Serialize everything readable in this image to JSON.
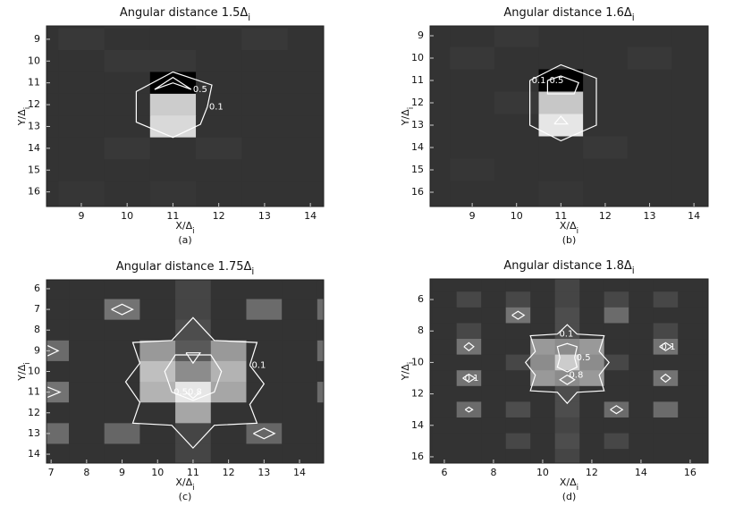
{
  "chart_data": [
    {
      "type": "heatmap",
      "title": "Angular distance 1.5Δ",
      "title_subscript": "i",
      "xlabel": "X/Δ",
      "xlabel_subscript": "i",
      "ylabel": "Y/Δ",
      "ylabel_subscript": "i",
      "caption": "(a)",
      "xlim": [
        8.24,
        14.29
      ],
      "ylim": [
        8.39,
        16.67
      ],
      "y_reversed": true,
      "xticks": [
        9,
        10,
        11,
        12,
        13,
        14
      ],
      "yticks": [
        9,
        10,
        11,
        12,
        13,
        14,
        15,
        16
      ],
      "clim": [
        0,
        1
      ],
      "xcells": [
        8,
        9,
        10,
        11,
        12,
        13,
        14
      ],
      "ycells": [
        8,
        9,
        10,
        11,
        12,
        13,
        14,
        15,
        16,
        17
      ],
      "z": [
        [
          0.2,
          0.2,
          0.21,
          0.2,
          0.21,
          0.2,
          0.2
        ],
        [
          0.2,
          0.22,
          0.2,
          0.2,
          0.2,
          0.22,
          0.2
        ],
        [
          0.2,
          0.2,
          0.22,
          0.22,
          0.2,
          0.2,
          0.2
        ],
        [
          0.2,
          0.2,
          0.2,
          0.0,
          0.2,
          0.2,
          0.2
        ],
        [
          0.2,
          0.2,
          0.2,
          0.8,
          0.2,
          0.2,
          0.2
        ],
        [
          0.2,
          0.2,
          0.2,
          0.85,
          0.2,
          0.2,
          0.2
        ],
        [
          0.2,
          0.2,
          0.22,
          0.2,
          0.22,
          0.2,
          0.2
        ],
        [
          0.2,
          0.2,
          0.2,
          0.2,
          0.2,
          0.2,
          0.2
        ],
        [
          0.2,
          0.21,
          0.2,
          0.21,
          0.2,
          0.2,
          0.2
        ],
        [
          0.2,
          0.21,
          0.2,
          0.21,
          0.2,
          0.2,
          0.2
        ]
      ],
      "contours": [
        {
          "level": 0.1,
          "x": [
            11.75,
            11.6,
            11.0,
            10.2,
            10.2,
            11.0,
            11.85,
            11.75
          ],
          "y": [
            12.1,
            12.9,
            13.5,
            12.8,
            11.4,
            10.5,
            11.1,
            12.1
          ]
        },
        {
          "level": 0.5,
          "x": [
            11.4,
            11.0,
            10.6,
            11.0,
            11.4
          ],
          "y": [
            11.3,
            10.75,
            11.3,
            11.0,
            11.3
          ]
        }
      ]
    },
    {
      "type": "heatmap",
      "title": "Angular distance 1.6Δ",
      "title_subscript": "i",
      "xlabel": "X/Δ",
      "xlabel_subscript": "i",
      "ylabel": "Y/Δ",
      "ylabel_subscript": "i",
      "caption": "(b)",
      "xlim": [
        8.05,
        14.32
      ],
      "ylim": [
        8.56,
        16.64
      ],
      "y_reversed": true,
      "xticks": [
        9,
        10,
        11,
        12,
        13,
        14
      ],
      "yticks": [
        9,
        10,
        11,
        12,
        13,
        14,
        15,
        16
      ],
      "clim": [
        0,
        1
      ],
      "xcells": [
        8,
        9,
        10,
        11,
        12,
        13,
        14
      ],
      "ycells": [
        8,
        9,
        10,
        11,
        12,
        13,
        14,
        15,
        16,
        17
      ],
      "z": [
        [
          0.2,
          0.2,
          0.2,
          0.21,
          0.2,
          0.2,
          0.2
        ],
        [
          0.2,
          0.2,
          0.22,
          0.2,
          0.2,
          0.2,
          0.2
        ],
        [
          0.2,
          0.22,
          0.2,
          0.2,
          0.2,
          0.22,
          0.2
        ],
        [
          0.2,
          0.2,
          0.2,
          0.0,
          0.2,
          0.2,
          0.2
        ],
        [
          0.2,
          0.2,
          0.22,
          0.78,
          0.2,
          0.2,
          0.2
        ],
        [
          0.2,
          0.2,
          0.2,
          0.9,
          0.2,
          0.2,
          0.2
        ],
        [
          0.2,
          0.2,
          0.2,
          0.2,
          0.22,
          0.2,
          0.2
        ],
        [
          0.2,
          0.21,
          0.2,
          0.2,
          0.2,
          0.2,
          0.2
        ],
        [
          0.2,
          0.2,
          0.2,
          0.21,
          0.2,
          0.2,
          0.2
        ],
        [
          0.2,
          0.2,
          0.2,
          0.21,
          0.2,
          0.2,
          0.2
        ]
      ],
      "contours": [
        {
          "level": 0.1,
          "x": [
            10.3,
            11.0,
            11.8,
            11.8,
            11.0,
            10.3,
            10.3
          ],
          "y": [
            11.0,
            10.3,
            10.9,
            13.0,
            13.7,
            13.0,
            11.0
          ]
        },
        {
          "level": 0.5,
          "x": [
            10.7,
            11.0,
            11.4,
            11.3,
            10.7,
            10.7
          ],
          "y": [
            11.0,
            10.8,
            11.1,
            11.6,
            11.6,
            11.0
          ]
        },
        {
          "x": [
            10.85,
            11.0,
            11.15,
            10.85
          ],
          "y": [
            12.95,
            12.6,
            12.95,
            12.95
          ]
        }
      ]
    },
    {
      "type": "heatmap",
      "title": "Angular distance 1.75Δ",
      "title_subscript": "i",
      "xlabel": "X/Δ",
      "xlabel_subscript": "i",
      "ylabel": "Y/Δ",
      "ylabel_subscript": "i",
      "caption": "(c)",
      "xlim": [
        6.87,
        14.68
      ],
      "ylim": [
        5.57,
        14.43
      ],
      "y_reversed": true,
      "xticks": [
        7,
        8,
        9,
        10,
        11,
        12,
        13,
        14
      ],
      "yticks": [
        6,
        7,
        8,
        9,
        10,
        11,
        12,
        13,
        14
      ],
      "clim": [
        0,
        1
      ],
      "xcells": [
        7,
        8,
        9,
        10,
        11,
        12,
        13,
        14,
        15
      ],
      "ycells": [
        6,
        7,
        8,
        9,
        10,
        11,
        12,
        13,
        14
      ],
      "z": [
        [
          0.2,
          0.2,
          0.2,
          0.2,
          0.27,
          0.2,
          0.2,
          0.2,
          0.2
        ],
        [
          0.2,
          0.2,
          0.45,
          0.2,
          0.27,
          0.2,
          0.42,
          0.2,
          0.42
        ],
        [
          0.2,
          0.2,
          0.2,
          0.2,
          0.3,
          0.2,
          0.2,
          0.2,
          0.2
        ],
        [
          0.42,
          0.2,
          0.2,
          0.6,
          0.35,
          0.6,
          0.2,
          0.2,
          0.42
        ],
        [
          0.2,
          0.2,
          0.2,
          0.75,
          0.55,
          0.7,
          0.2,
          0.2,
          0.2
        ],
        [
          0.45,
          0.2,
          0.2,
          0.7,
          0.9,
          0.65,
          0.2,
          0.2,
          0.42
        ],
        [
          0.2,
          0.2,
          0.2,
          0.2,
          0.65,
          0.2,
          0.2,
          0.2,
          0.2
        ],
        [
          0.42,
          0.2,
          0.4,
          0.2,
          0.27,
          0.2,
          0.4,
          0.2,
          0.2
        ],
        [
          0.2,
          0.2,
          0.2,
          0.2,
          0.27,
          0.2,
          0.2,
          0.2,
          0.2
        ]
      ],
      "contours": [
        {
          "level": 0.1,
          "x": [
            12.6,
            13.0,
            12.6,
            12.8,
            11.6,
            11.0,
            10.4,
            9.3,
            9.5,
            9.1,
            9.5,
            9.3,
            10.4,
            11.0,
            11.6,
            12.8,
            12.6
          ],
          "y": [
            9.7,
            10.6,
            11.6,
            12.5,
            12.6,
            13.7,
            12.6,
            12.5,
            11.5,
            10.5,
            9.6,
            8.6,
            8.5,
            7.4,
            8.5,
            8.6,
            9.7
          ]
        },
        {
          "level": 0.5,
          "x": [
            10.4,
            10.2,
            10.5,
            11.5,
            11.8,
            11.6,
            11.0,
            10.4
          ],
          "y": [
            11.0,
            10.0,
            9.2,
            9.2,
            10.0,
            11.0,
            11.4,
            11.0
          ]
        },
        {
          "level": 0.8,
          "x": [
            10.8,
            11.0,
            11.2
          ],
          "y": [
            11.0,
            11.3,
            11.0
          ]
        },
        {
          "x": [
            10.8,
            11.2,
            11.0,
            10.8
          ],
          "y": [
            9.1,
            9.1,
            9.6,
            9.1
          ]
        },
        {
          "x": [
            8.7,
            9.0,
            9.3,
            9.0,
            8.7
          ],
          "y": [
            7.0,
            6.75,
            7.0,
            7.25,
            7.0
          ]
        },
        {
          "x": [
            12.7,
            13.0,
            13.3,
            13.0,
            12.7
          ],
          "y": [
            13.0,
            12.75,
            13.0,
            13.25,
            13.0
          ]
        },
        {
          "x": [
            6.9,
            7.2,
            6.9
          ],
          "y": [
            8.75,
            9.0,
            9.25
          ]
        },
        {
          "x": [
            6.9,
            7.25,
            6.9
          ],
          "y": [
            10.75,
            11.0,
            11.25
          ]
        },
        {
          "x": [
            14.68,
            14.8,
            14.68
          ],
          "y": [
            8.75,
            9.0,
            9.25
          ]
        }
      ]
    },
    {
      "type": "heatmap",
      "title": "Angular distance 1.8Δ",
      "title_subscript": "i",
      "xlabel": "X/Δ",
      "xlabel_subscript": "i",
      "ylabel": "Y/Δ",
      "ylabel_subscript": "i",
      "caption": "(d)",
      "xlim": [
        5.42,
        16.73
      ],
      "ylim": [
        4.69,
        16.4
      ],
      "y_reversed": true,
      "xticks": [
        6,
        8,
        10,
        12,
        14,
        16
      ],
      "yticks": [
        6,
        8,
        10,
        12,
        14,
        16
      ],
      "clim": [
        0,
        1
      ],
      "xcells": [
        5,
        6,
        7,
        8,
        9,
        10,
        11,
        12,
        13,
        14,
        15,
        16,
        17
      ],
      "ycells": [
        5,
        6,
        7,
        8,
        9,
        10,
        11,
        12,
        13,
        14,
        15,
        16
      ],
      "z": [
        [
          0.2,
          0.2,
          0.2,
          0.2,
          0.2,
          0.2,
          0.27,
          0.2,
          0.2,
          0.2,
          0.2,
          0.2,
          0.2
        ],
        [
          0.2,
          0.2,
          0.28,
          0.2,
          0.28,
          0.2,
          0.27,
          0.2,
          0.28,
          0.2,
          0.28,
          0.2,
          0.2
        ],
        [
          0.2,
          0.2,
          0.2,
          0.2,
          0.45,
          0.2,
          0.3,
          0.2,
          0.42,
          0.2,
          0.2,
          0.2,
          0.2
        ],
        [
          0.2,
          0.2,
          0.28,
          0.2,
          0.2,
          0.2,
          0.3,
          0.2,
          0.2,
          0.2,
          0.28,
          0.2,
          0.2
        ],
        [
          0.2,
          0.2,
          0.45,
          0.2,
          0.2,
          0.6,
          0.55,
          0.6,
          0.2,
          0.2,
          0.45,
          0.2,
          0.2
        ],
        [
          0.2,
          0.2,
          0.2,
          0.2,
          0.28,
          0.55,
          0.8,
          0.55,
          0.28,
          0.2,
          0.2,
          0.2,
          0.2
        ],
        [
          0.2,
          0.2,
          0.45,
          0.2,
          0.2,
          0.6,
          0.55,
          0.6,
          0.2,
          0.2,
          0.45,
          0.2,
          0.2
        ],
        [
          0.2,
          0.2,
          0.2,
          0.2,
          0.2,
          0.2,
          0.3,
          0.2,
          0.2,
          0.2,
          0.2,
          0.2,
          0.2
        ],
        [
          0.2,
          0.2,
          0.42,
          0.2,
          0.3,
          0.2,
          0.3,
          0.2,
          0.42,
          0.2,
          0.42,
          0.2,
          0.2
        ],
        [
          0.2,
          0.2,
          0.2,
          0.2,
          0.2,
          0.2,
          0.27,
          0.2,
          0.2,
          0.2,
          0.2,
          0.2,
          0.2
        ],
        [
          0.2,
          0.2,
          0.2,
          0.2,
          0.28,
          0.2,
          0.3,
          0.2,
          0.28,
          0.2,
          0.2,
          0.2,
          0.2
        ],
        [
          0.2,
          0.2,
          0.2,
          0.2,
          0.2,
          0.2,
          0.27,
          0.2,
          0.2,
          0.2,
          0.2,
          0.2,
          0.2
        ]
      ],
      "contours": [
        {
          "level": 0.1,
          "x": [
            10.6,
            11.0,
            11.4,
            12.5,
            12.3,
            12.7,
            12.3,
            12.5,
            11.4,
            11.0,
            10.6,
            9.5,
            9.7,
            9.3,
            9.7,
            9.5,
            10.6
          ],
          "y": [
            8.2,
            7.6,
            8.2,
            8.3,
            9.3,
            10.0,
            10.8,
            11.8,
            11.9,
            12.6,
            11.9,
            11.8,
            10.8,
            10.0,
            9.3,
            8.3,
            8.2
          ]
        },
        {
          "level": 0.5,
          "x": [
            11.3,
            11.4,
            11.0,
            10.6,
            10.7,
            10.6,
            11.0,
            11.4,
            11.3
          ],
          "y": [
            9.7,
            9.0,
            8.8,
            9.0,
            9.7,
            10.3,
            10.6,
            10.3,
            9.7
          ]
        },
        {
          "level": 0.8,
          "x": [
            11.0,
            11.3,
            11.0,
            10.7,
            11.0
          ],
          "y": [
            10.8,
            11.1,
            11.4,
            11.1,
            10.8
          ]
        },
        {
          "level": 0.1,
          "x": [
            6.75,
            7.0,
            7.25,
            7.0,
            6.75
          ],
          "y": [
            11.0,
            10.75,
            11.0,
            11.25,
            11.0
          ]
        },
        {
          "level": 0.1,
          "x": [
            14.75,
            15.0,
            15.25,
            15.0,
            14.75
          ],
          "y": [
            9.0,
            8.75,
            9.0,
            9.25,
            9.0
          ]
        },
        {
          "x": [
            8.75,
            9.0,
            9.25,
            9.0,
            8.75
          ],
          "y": [
            7.0,
            6.75,
            7.0,
            7.25,
            7.0
          ]
        },
        {
          "x": [
            12.75,
            13.0,
            13.25,
            13.0,
            12.75
          ],
          "y": [
            13.0,
            12.75,
            13.0,
            13.25,
            13.0
          ]
        },
        {
          "x": [
            6.8,
            7.0,
            7.2,
            7.0,
            6.8
          ],
          "y": [
            9.0,
            8.75,
            9.0,
            9.25,
            9.0
          ]
        },
        {
          "x": [
            14.8,
            15.0,
            15.2,
            15.0,
            14.8
          ],
          "y": [
            11.0,
            10.75,
            11.0,
            11.25,
            11.0
          ]
        },
        {
          "x": [
            6.85,
            7.0,
            7.15,
            7.0,
            6.85
          ],
          "y": [
            13.0,
            12.85,
            13.0,
            13.15,
            13.0
          ]
        }
      ]
    }
  ]
}
